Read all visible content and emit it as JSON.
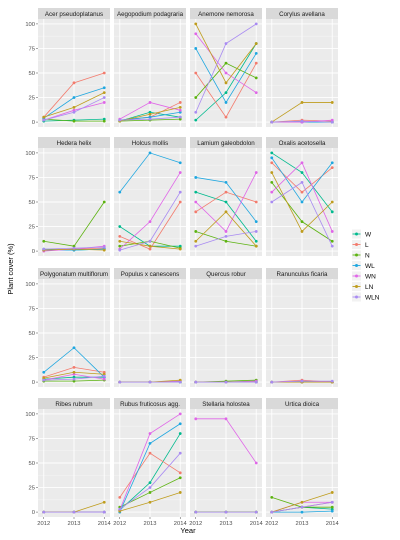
{
  "chart_data": {
    "type": "line",
    "xlabel": "Year",
    "ylabel": "Plant cover (%)",
    "x": [
      "2012",
      "2013",
      "2014"
    ],
    "y_ticks": [
      "0",
      "25",
      "50",
      "75",
      "100"
    ],
    "ylim": [
      0,
      100
    ],
    "grid": true,
    "legend_position": "right",
    "legend": [
      {
        "name": "W",
        "color": "#F8766D"
      },
      {
        "name": "L",
        "color": "#C49A00"
      },
      {
        "name": "N",
        "color": "#53B400"
      },
      {
        "name": "WL",
        "color": "#00C094"
      },
      {
        "name": "WN",
        "color": "#00B6EB"
      },
      {
        "name": "LN",
        "color": "#A58AFF"
      },
      {
        "name": "WLN",
        "color": "#FB61D7"
      }
    ],
    "legend_order": [
      "W",
      "L",
      "N",
      "WL",
      "WN",
      "LN",
      "WLN"
    ],
    "colors": {
      "W": "#00BA8E",
      "L": "#F37B6D",
      "N": "#5CB310",
      "WL": "#1FA7E0",
      "WN": "#E066E8",
      "LN": "#BF9D1E",
      "WLN": "#A98BF2"
    },
    "panels": [
      {
        "title": "Acer pseudoplatanus",
        "series": [
          {
            "name": "W",
            "values": [
              1,
              2,
              3
            ]
          },
          {
            "name": "L",
            "values": [
              5,
              40,
              50
            ]
          },
          {
            "name": "N",
            "values": [
              3,
              1,
              1
            ]
          },
          {
            "name": "WL",
            "values": [
              4,
              25,
              35
            ]
          },
          {
            "name": "WN",
            "values": [
              2,
              12,
              20
            ]
          },
          {
            "name": "LN",
            "values": [
              5,
              15,
              30
            ]
          },
          {
            "name": "WLN",
            "values": [
              2,
              10,
              25
            ]
          }
        ]
      },
      {
        "title": "Aegopodium podagraria",
        "series": [
          {
            "name": "W",
            "values": [
              1,
              10,
              5
            ]
          },
          {
            "name": "L",
            "values": [
              2,
              5,
              20
            ]
          },
          {
            "name": "N",
            "values": [
              1,
              2,
              3
            ]
          },
          {
            "name": "WL",
            "values": [
              2,
              5,
              10
            ]
          },
          {
            "name": "WN",
            "values": [
              3,
              20,
              12
            ]
          },
          {
            "name": "LN",
            "values": [
              1,
              8,
              15
            ]
          },
          {
            "name": "WLN",
            "values": [
              2,
              3,
              5
            ]
          }
        ]
      },
      {
        "title": "Anemone nemorosa",
        "series": [
          {
            "name": "W",
            "values": [
              2,
              30,
              80
            ]
          },
          {
            "name": "L",
            "values": [
              50,
              5,
              60
            ]
          },
          {
            "name": "N",
            "values": [
              25,
              60,
              45
            ]
          },
          {
            "name": "WL",
            "values": [
              75,
              20,
              70
            ]
          },
          {
            "name": "WN",
            "values": [
              90,
              50,
              30
            ]
          },
          {
            "name": "LN",
            "values": [
              100,
              40,
              80
            ]
          },
          {
            "name": "WLN",
            "values": [
              10,
              80,
              100
            ]
          }
        ]
      },
      {
        "title": "Corylus avellana",
        "series": [
          {
            "name": "W",
            "values": [
              0,
              0,
              0
            ]
          },
          {
            "name": "L",
            "values": [
              0,
              2,
              1
            ]
          },
          {
            "name": "N",
            "values": [
              0,
              0,
              0
            ]
          },
          {
            "name": "WL",
            "values": [
              0,
              0,
              0
            ]
          },
          {
            "name": "WN",
            "values": [
              0,
              0,
              2
            ]
          },
          {
            "name": "LN",
            "values": [
              0,
              20,
              20
            ]
          },
          {
            "name": "WLN",
            "values": [
              0,
              1,
              0
            ]
          }
        ]
      },
      {
        "title": "Hedera helix",
        "series": [
          {
            "name": "W",
            "values": [
              2,
              1,
              2
            ]
          },
          {
            "name": "L",
            "values": [
              1,
              2,
              3
            ]
          },
          {
            "name": "N",
            "values": [
              10,
              5,
              50
            ]
          },
          {
            "name": "WL",
            "values": [
              1,
              1,
              2
            ]
          },
          {
            "name": "WN",
            "values": [
              0,
              2,
              5
            ]
          },
          {
            "name": "LN",
            "values": [
              1,
              2,
              1
            ]
          },
          {
            "name": "WLN",
            "values": [
              2,
              3,
              4
            ]
          }
        ]
      },
      {
        "title": "Holcus mollis",
        "series": [
          {
            "name": "W",
            "values": [
              25,
              5,
              5
            ]
          },
          {
            "name": "L",
            "values": [
              15,
              2,
              50
            ]
          },
          {
            "name": "N",
            "values": [
              5,
              10,
              3
            ]
          },
          {
            "name": "WL",
            "values": [
              60,
              100,
              90
            ]
          },
          {
            "name": "WN",
            "values": [
              2,
              30,
              80
            ]
          },
          {
            "name": "LN",
            "values": [
              10,
              5,
              2
            ]
          },
          {
            "name": "WLN",
            "values": [
              1,
              10,
              60
            ]
          }
        ]
      },
      {
        "title": "Lamium galeobdolon",
        "series": [
          {
            "name": "W",
            "values": [
              60,
              50,
              10
            ]
          },
          {
            "name": "L",
            "values": [
              40,
              60,
              50
            ]
          },
          {
            "name": "N",
            "values": [
              20,
              10,
              5
            ]
          },
          {
            "name": "WL",
            "values": [
              75,
              70,
              30
            ]
          },
          {
            "name": "WN",
            "values": [
              50,
              20,
              80
            ]
          },
          {
            "name": "LN",
            "values": [
              10,
              40,
              5
            ]
          },
          {
            "name": "WLN",
            "values": [
              5,
              15,
              20
            ]
          }
        ]
      },
      {
        "title": "Oxalis acetosella",
        "series": [
          {
            "name": "W",
            "values": [
              100,
              80,
              40
            ]
          },
          {
            "name": "L",
            "values": [
              90,
              60,
              85
            ]
          },
          {
            "name": "N",
            "values": [
              70,
              30,
              10
            ]
          },
          {
            "name": "WL",
            "values": [
              95,
              50,
              90
            ]
          },
          {
            "name": "WN",
            "values": [
              60,
              90,
              20
            ]
          },
          {
            "name": "LN",
            "values": [
              80,
              20,
              50
            ]
          },
          {
            "name": "WLN",
            "values": [
              50,
              70,
              5
            ]
          }
        ]
      },
      {
        "title": "Polygonatum multiflorum",
        "series": [
          {
            "name": "W",
            "values": [
              3,
              5,
              5
            ]
          },
          {
            "name": "L",
            "values": [
              5,
              15,
              10
            ]
          },
          {
            "name": "N",
            "values": [
              1,
              1,
              2
            ]
          },
          {
            "name": "WL",
            "values": [
              10,
              35,
              5
            ]
          },
          {
            "name": "WN",
            "values": [
              2,
              8,
              3
            ]
          },
          {
            "name": "LN",
            "values": [
              4,
              10,
              8
            ]
          },
          {
            "name": "WLN",
            "values": [
              2,
              3,
              6
            ]
          }
        ]
      },
      {
        "title": "Populus x canescens",
        "series": [
          {
            "name": "W",
            "values": [
              0,
              0,
              0
            ]
          },
          {
            "name": "L",
            "values": [
              0,
              0,
              1
            ]
          },
          {
            "name": "N",
            "values": [
              0,
              0,
              0
            ]
          },
          {
            "name": "WL",
            "values": [
              0,
              0,
              0
            ]
          },
          {
            "name": "WN",
            "values": [
              0,
              0,
              1
            ]
          },
          {
            "name": "LN",
            "values": [
              0,
              0,
              2
            ]
          },
          {
            "name": "WLN",
            "values": [
              0,
              0,
              0
            ]
          }
        ]
      },
      {
        "title": "Quercus robur",
        "series": [
          {
            "name": "W",
            "values": [
              0,
              0,
              1
            ]
          },
          {
            "name": "L",
            "values": [
              0,
              0,
              0
            ]
          },
          {
            "name": "N",
            "values": [
              0,
              1,
              2
            ]
          },
          {
            "name": "WL",
            "values": [
              0,
              0,
              0
            ]
          },
          {
            "name": "WN",
            "values": [
              0,
              0,
              1
            ]
          },
          {
            "name": "LN",
            "values": [
              0,
              0,
              0
            ]
          },
          {
            "name": "WLN",
            "values": [
              0,
              0,
              0
            ]
          }
        ]
      },
      {
        "title": "Ranunculus ficaria",
        "series": [
          {
            "name": "W",
            "values": [
              0,
              0,
              0
            ]
          },
          {
            "name": "L",
            "values": [
              0,
              2,
              0
            ]
          },
          {
            "name": "N",
            "values": [
              0,
              0,
              0
            ]
          },
          {
            "name": "WL",
            "values": [
              0,
              0,
              0
            ]
          },
          {
            "name": "WN",
            "values": [
              0,
              1,
              0
            ]
          },
          {
            "name": "LN",
            "values": [
              0,
              0,
              0
            ]
          },
          {
            "name": "WLN",
            "values": [
              0,
              1,
              1
            ]
          }
        ]
      },
      {
        "title": "Ribes rubrum",
        "series": [
          {
            "name": "W",
            "values": [
              0,
              0,
              0
            ]
          },
          {
            "name": "L",
            "values": [
              0,
              0,
              0
            ]
          },
          {
            "name": "N",
            "values": [
              0,
              0,
              0
            ]
          },
          {
            "name": "WL",
            "values": [
              0,
              0,
              0
            ]
          },
          {
            "name": "WN",
            "values": [
              0,
              0,
              0
            ]
          },
          {
            "name": "LN",
            "values": [
              0,
              0,
              10
            ]
          },
          {
            "name": "WLN",
            "values": [
              0,
              0,
              0
            ]
          }
        ]
      },
      {
        "title": "Rubus fruticosus agg.",
        "series": [
          {
            "name": "W",
            "values": [
              2,
              30,
              80
            ]
          },
          {
            "name": "L",
            "values": [
              15,
              60,
              40
            ]
          },
          {
            "name": "N",
            "values": [
              5,
              20,
              35
            ]
          },
          {
            "name": "WL",
            "values": [
              0,
              70,
              90
            ]
          },
          {
            "name": "WN",
            "values": [
              2,
              80,
              100
            ]
          },
          {
            "name": "LN",
            "values": [
              1,
              10,
              20
            ]
          },
          {
            "name": "WLN",
            "values": [
              3,
              25,
              60
            ]
          }
        ]
      },
      {
        "title": "Stellaria holostea",
        "series": [
          {
            "name": "W",
            "values": [
              0,
              0,
              0
            ]
          },
          {
            "name": "L",
            "values": [
              0,
              0,
              0
            ]
          },
          {
            "name": "N",
            "values": [
              0,
              0,
              0
            ]
          },
          {
            "name": "WL",
            "values": [
              0,
              0,
              0
            ]
          },
          {
            "name": "WN",
            "values": [
              95,
              95,
              50
            ]
          },
          {
            "name": "LN",
            "values": [
              0,
              0,
              0
            ]
          },
          {
            "name": "WLN",
            "values": [
              0,
              0,
              0
            ]
          }
        ]
      },
      {
        "title": "Urtica dioica",
        "series": [
          {
            "name": "W",
            "values": [
              0,
              5,
              3
            ]
          },
          {
            "name": "L",
            "values": [
              0,
              5,
              10
            ]
          },
          {
            "name": "N",
            "values": [
              15,
              5,
              5
            ]
          },
          {
            "name": "WL",
            "values": [
              0,
              0,
              1
            ]
          },
          {
            "name": "WN",
            "values": [
              0,
              10,
              10
            ]
          },
          {
            "name": "LN",
            "values": [
              0,
              10,
              20
            ]
          },
          {
            "name": "WLN",
            "values": [
              0,
              5,
              10
            ]
          }
        ]
      }
    ]
  }
}
